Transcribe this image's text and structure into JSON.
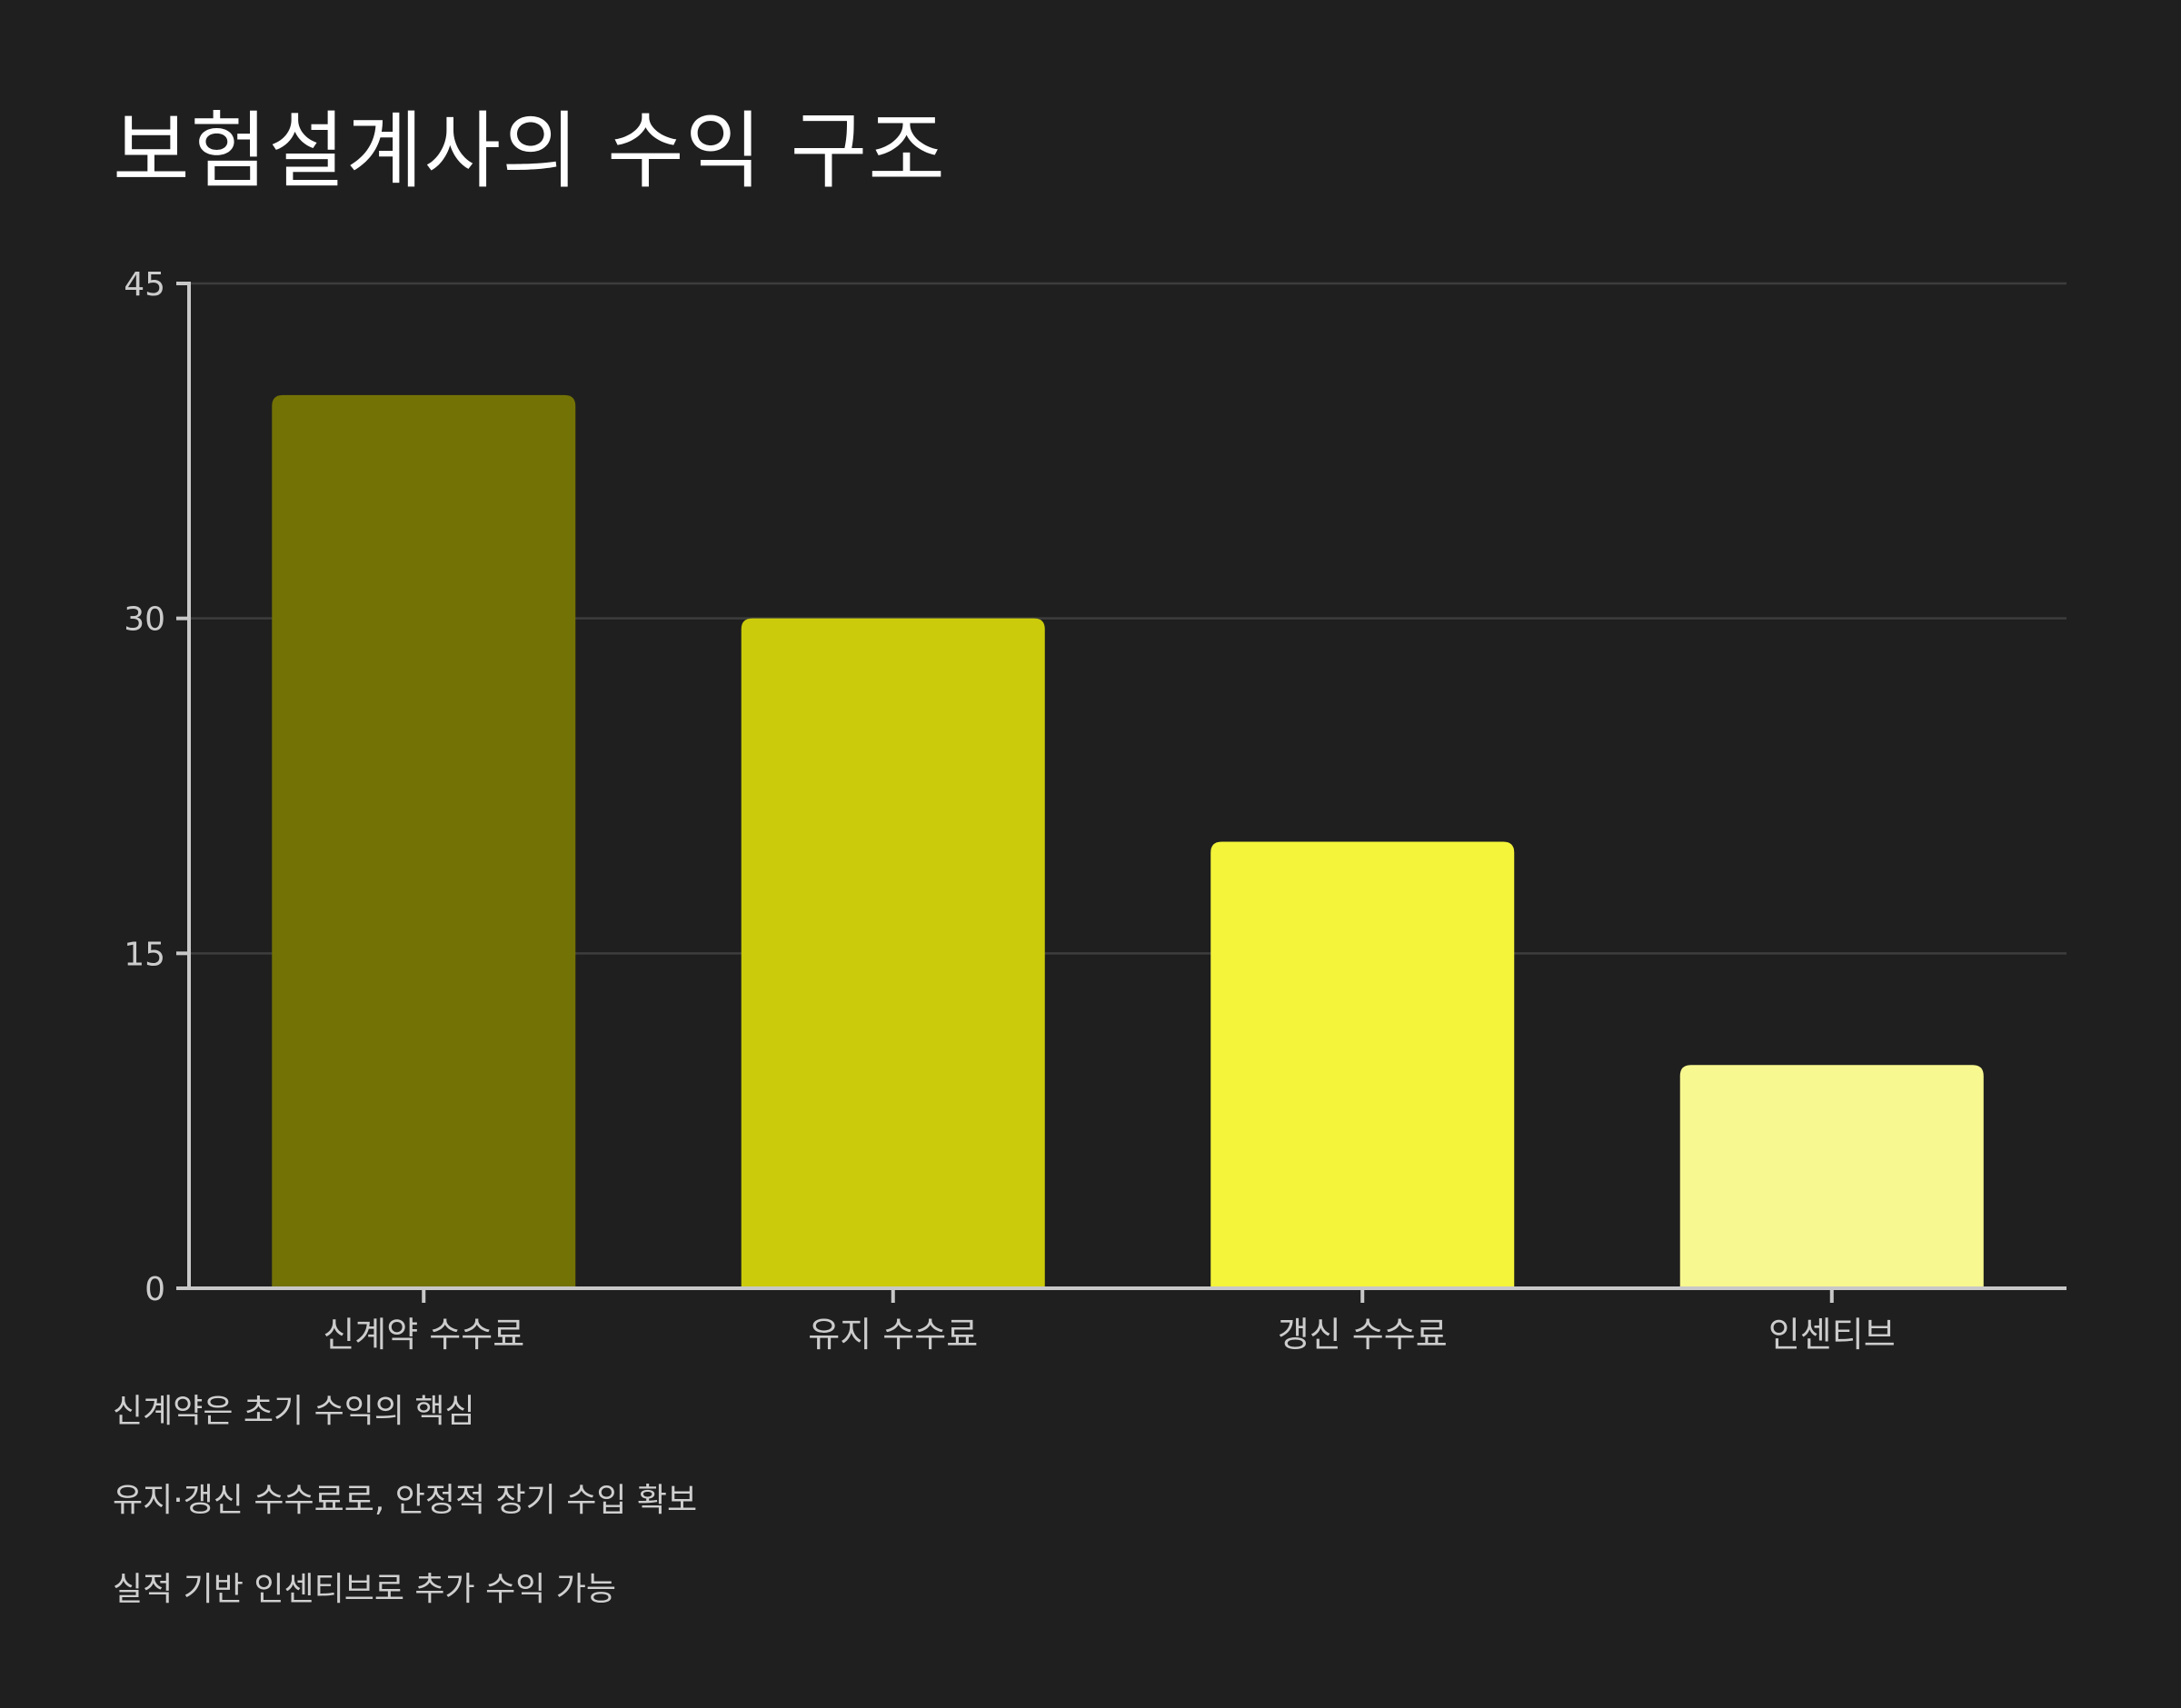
{
  "title": "보험설계사의 수익 구조",
  "colors": {
    "background": "#1f1f1f",
    "gridline": "#3d3d3d",
    "axis": "#c8c8c8",
    "tick_label": "#cccccc",
    "title": "#ffffff",
    "note": "#cfcfcf"
  },
  "chart_data": {
    "type": "bar",
    "title": "보험설계사의 수익 구조",
    "xlabel": "",
    "ylabel": "",
    "categories": [
      "신계약 수수료",
      "유지 수수료",
      "갱신 수수료",
      "인센티브"
    ],
    "values": [
      40,
      30,
      20,
      10
    ],
    "bar_colors": [
      "#737205",
      "#cbcb0b",
      "#f4f43a",
      "#f8f890"
    ],
    "ylim": [
      0,
      45
    ],
    "yticks": [
      0,
      15,
      30,
      45
    ],
    "grid": true,
    "legend": "none"
  },
  "notes": [
    "신계약은 초기 수익의 핵심",
    "유지·갱신 수수료로, 안정적 장기 수입 확보",
    "실적 기반 인센티브로 추가 수익 가능"
  ]
}
